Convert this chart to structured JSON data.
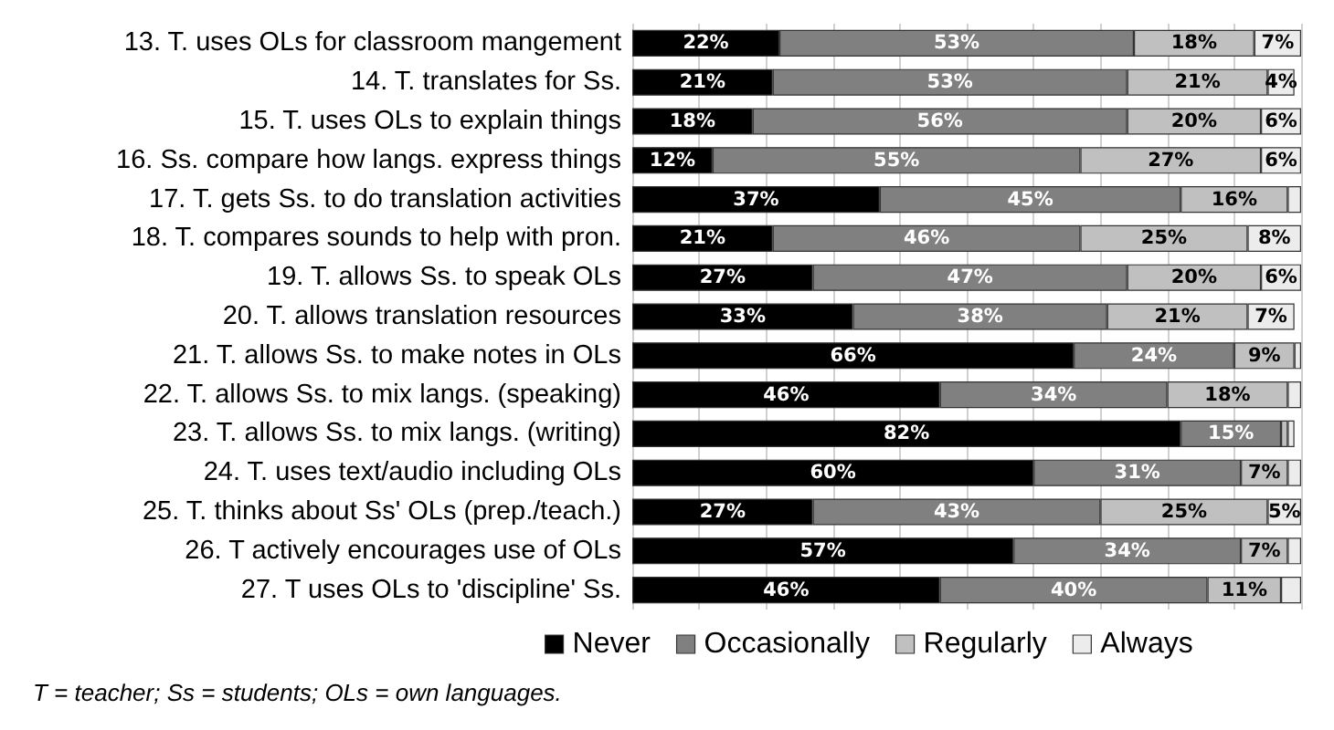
{
  "chart_data": {
    "type": "bar",
    "orientation": "horizontal",
    "stacked": true,
    "grid": "x",
    "legend": "bottom",
    "tick_labels": "y",
    "categories": [
      "13. T. uses OLs for classroom mangement",
      "14. T. translates for Ss.",
      "15. T. uses OLs to explain things",
      "16. Ss. compare how langs. express things",
      "17. T. gets Ss. to do translation activities",
      "18. T. compares sounds to help with pron.",
      "19. T. allows Ss. to speak OLs",
      "20. T. allows translation resources",
      "21. T. allows Ss. to make notes in OLs",
      "22. T. allows Ss. to mix langs. (speaking)",
      "23. T. allows Ss. to mix langs. (writing)",
      "24. T. uses text/audio including OLs",
      "25. T. thinks about Ss' OLs (prep./teach.)",
      "26. T actively encourages use of OLs",
      "27. T uses OLs to 'discipline' Ss."
    ],
    "series": [
      {
        "name": "Never",
        "color": "#000000",
        "values": [
          22,
          21,
          18,
          12,
          37,
          21,
          27,
          33,
          66,
          46,
          82,
          60,
          27,
          57,
          46
        ],
        "value_labels": [
          "22%",
          "21%",
          "18%",
          "12%",
          "37%",
          "21%",
          "27%",
          "33%",
          "66%",
          "46%",
          "82%",
          "60%",
          "27%",
          "57%",
          "46%"
        ]
      },
      {
        "name": "Occasionally",
        "color": "#808080",
        "values": [
          53,
          53,
          56,
          55,
          45,
          46,
          47,
          38,
          24,
          34,
          15,
          31,
          43,
          34,
          40
        ],
        "value_labels": [
          "53%",
          "53%",
          "56%",
          "55%",
          "45%",
          "46%",
          "47%",
          "38%",
          "24%",
          "34%",
          "15%",
          "31%",
          "43%",
          "34%",
          "40%"
        ]
      },
      {
        "name": "Regularly",
        "color": "#c0c0c0",
        "values": [
          18,
          21,
          20,
          27,
          16,
          25,
          20,
          21,
          9,
          18,
          1,
          7,
          25,
          7,
          11
        ],
        "value_labels": [
          "18%",
          "21%",
          "20%",
          "27%",
          "16%",
          "25%",
          "20%",
          "21%",
          "9%",
          "18%",
          null,
          "7%",
          "25%",
          "7%",
          "11%"
        ]
      },
      {
        "name": "Always",
        "color": "#ececec",
        "values": [
          7,
          4,
          6,
          6,
          2,
          8,
          6,
          7,
          1,
          2,
          1,
          2,
          5,
          2,
          3
        ],
        "value_labels": [
          "7%",
          "4%",
          "6%",
          "6%",
          null,
          "8%",
          "6%",
          "7%",
          null,
          null,
          null,
          null,
          "5%",
          null,
          null
        ]
      }
    ],
    "annotations": [
      "T = teacher; Ss = students; OLs = own languages."
    ]
  }
}
